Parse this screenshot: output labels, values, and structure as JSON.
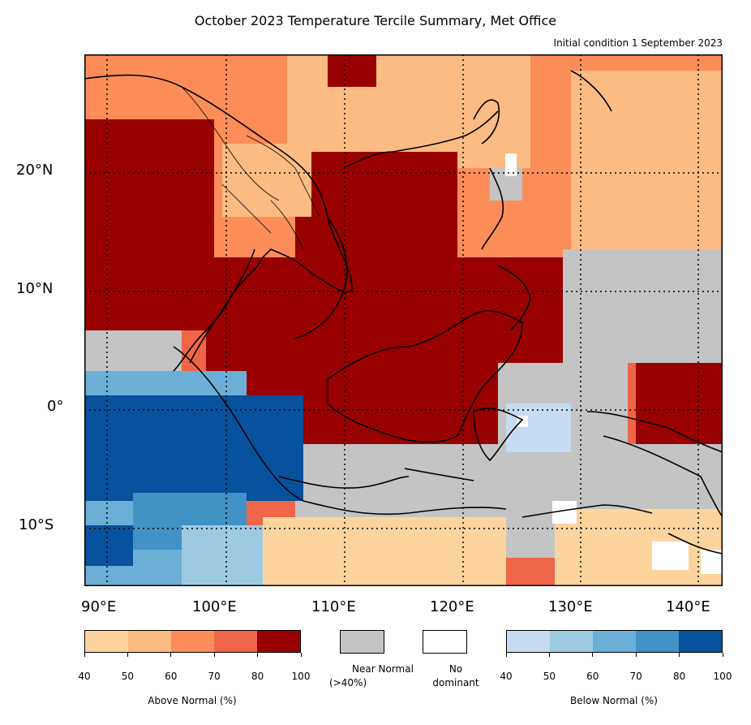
{
  "title": "October 2023 Temperature Tercile Summary, Met Office",
  "subtitle": "Initial condition 1 September 2023",
  "map": {
    "lat_labels": [
      "20°N",
      "10°N",
      "0°",
      "10°S"
    ],
    "lon_labels": [
      "90°E",
      "100°E",
      "110°E",
      "120°E",
      "130°E",
      "140°E"
    ],
    "extent": {
      "lon_min": 88,
      "lon_max": 142,
      "lat_min": -15,
      "lat_max": 30
    }
  },
  "legend": {
    "above": {
      "title": "Above Normal (%)",
      "ticks": [
        "40",
        "50",
        "60",
        "70",
        "80",
        "100"
      ],
      "colors": [
        "#fdd49e",
        "#fdbb84",
        "#fc8d59",
        "#ef6548",
        "#990000"
      ]
    },
    "near": {
      "label_line1": "Near Normal",
      "label_line2": "(>40%)",
      "color": "#c4c4c4"
    },
    "none": {
      "label_line1": "No",
      "label_line2": "dominant",
      "color": "#ffffff"
    },
    "below": {
      "title": "Below Normal (%)",
      "ticks": [
        "40",
        "50",
        "60",
        "70",
        "80",
        "100"
      ],
      "colors": [
        "#c6dbef",
        "#9ecae1",
        "#6baed6",
        "#4292c6",
        "#08519c"
      ]
    }
  }
}
